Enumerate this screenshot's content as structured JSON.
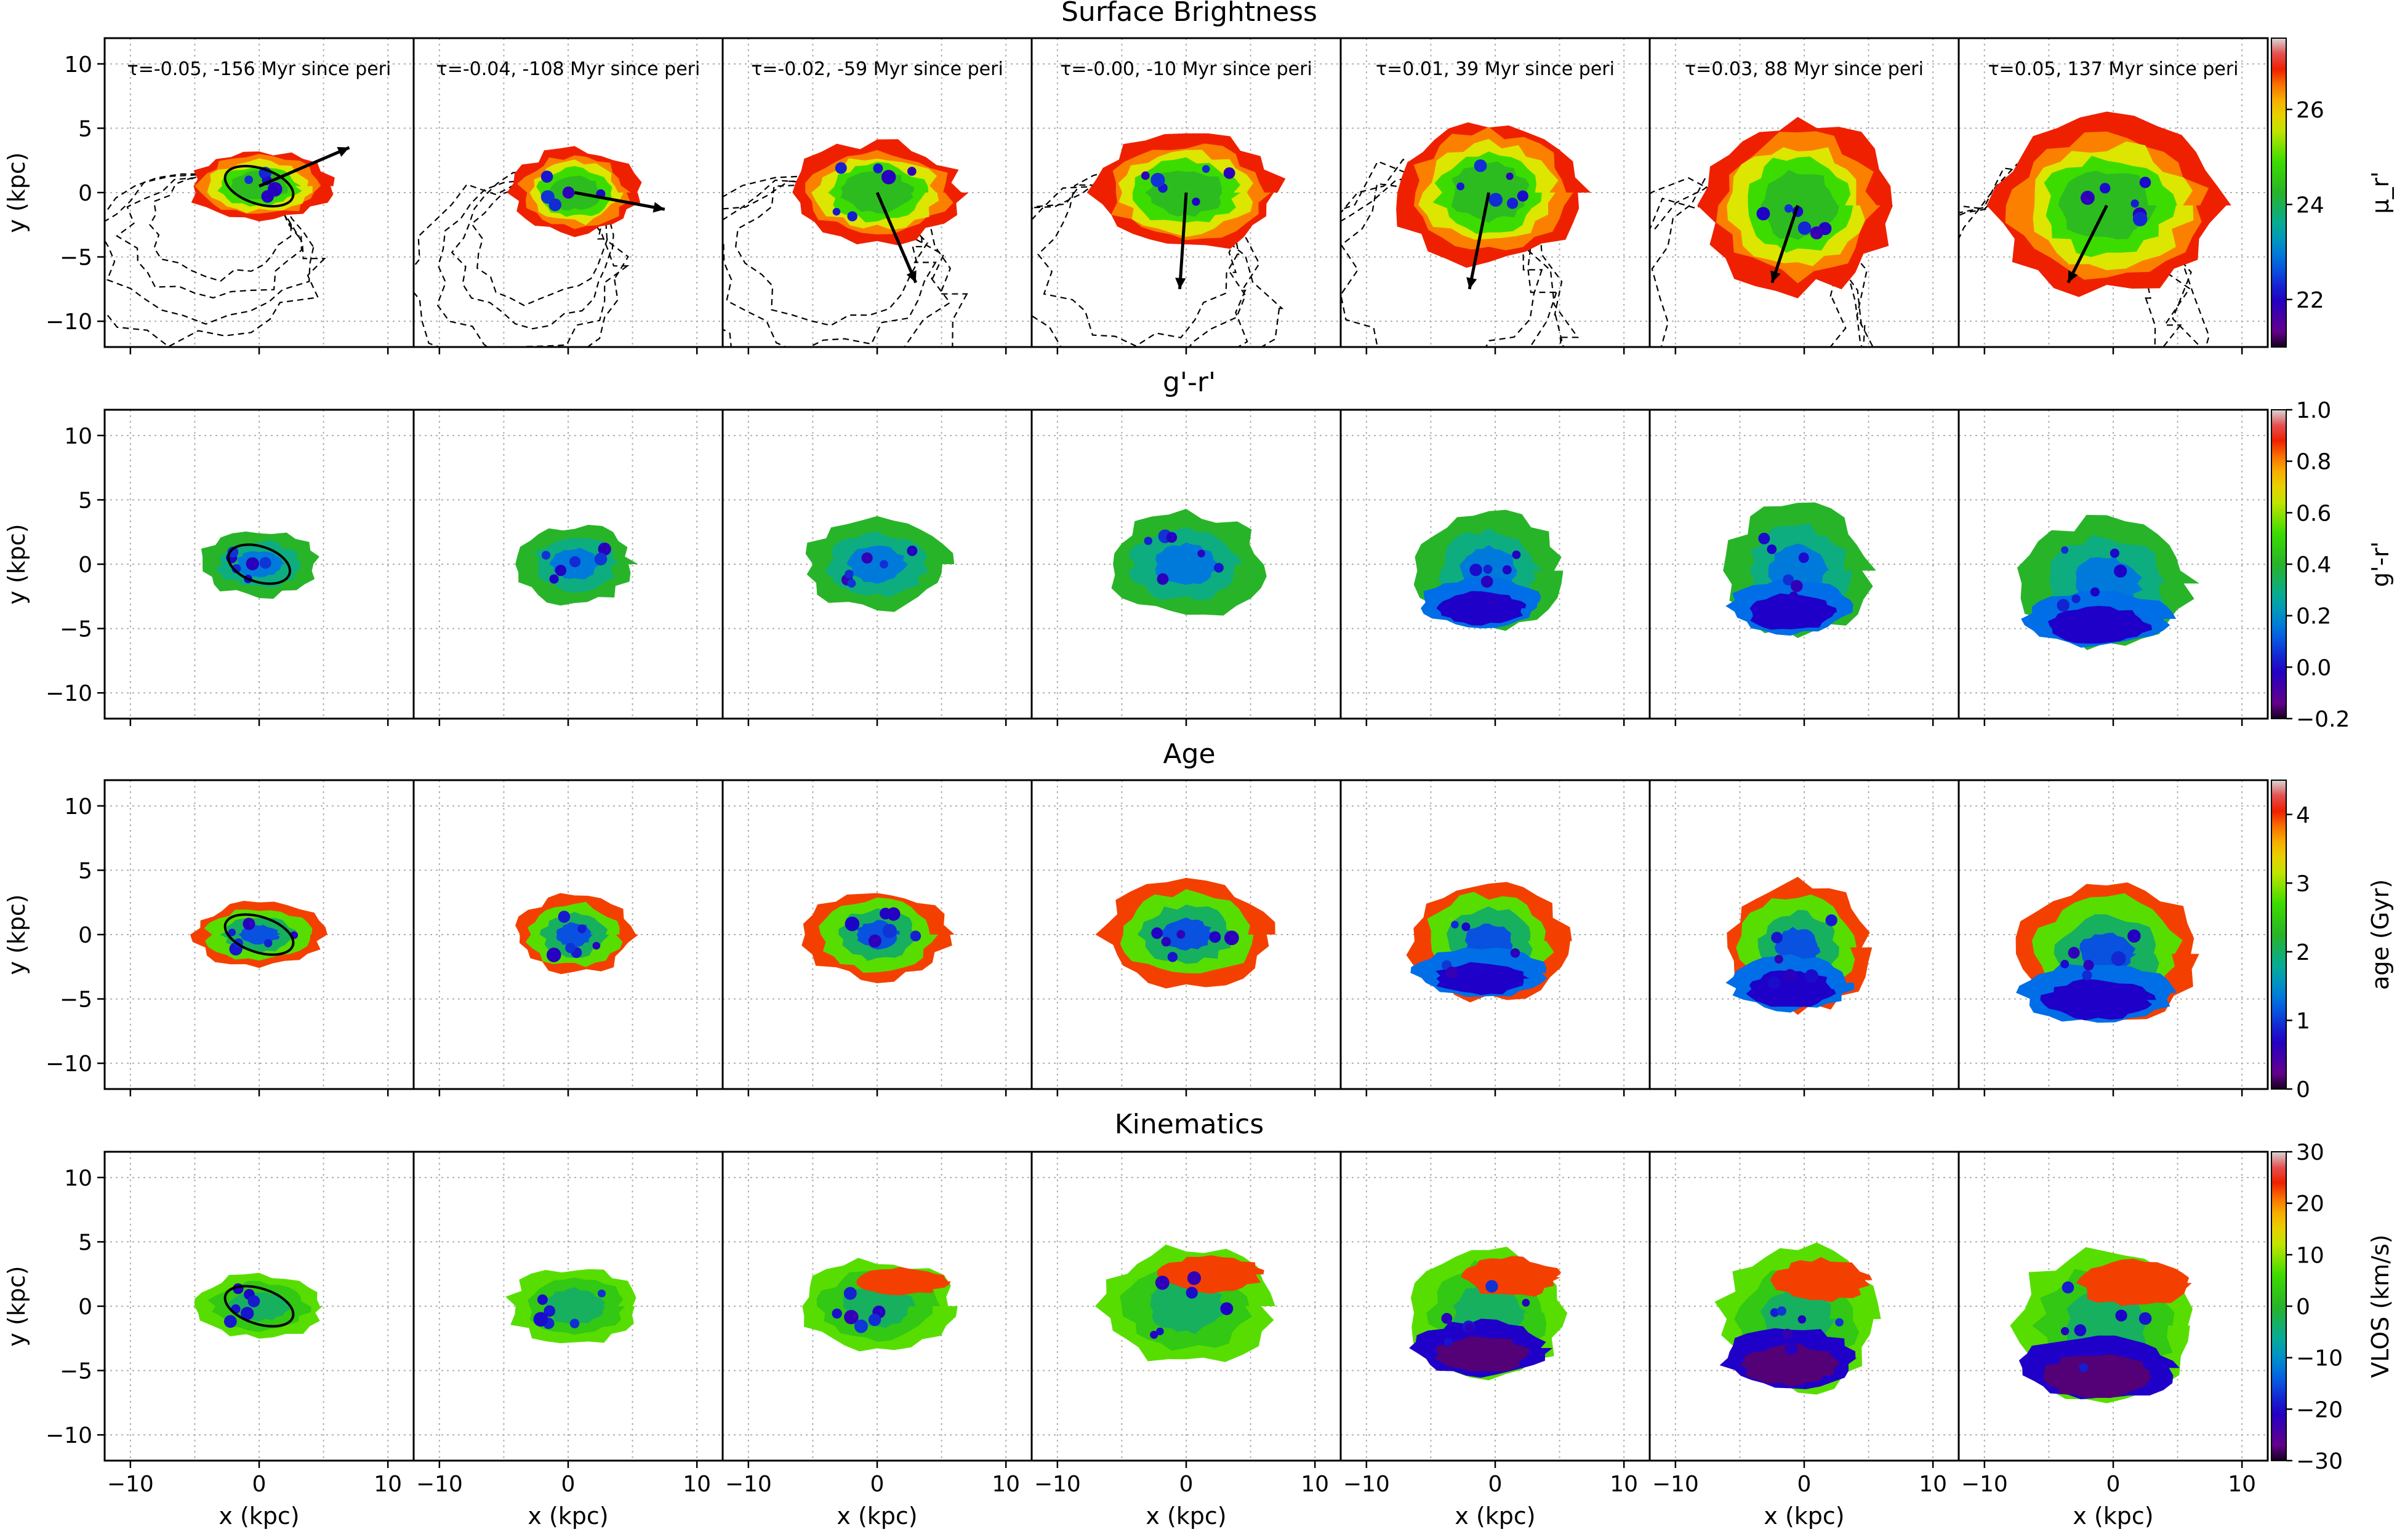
{
  "figure": {
    "rows": [
      {
        "title": "Surface Brightness",
        "cbar_label": "μ_r'",
        "cbar_ticks": [
          "22",
          "24",
          "26"
        ]
      },
      {
        "title": "g'-r'",
        "cbar_label": "g'-r'",
        "cbar_ticks": [
          "−0.2",
          "0.0",
          "0.2",
          "0.4",
          "0.6",
          "0.8",
          "1.0"
        ]
      },
      {
        "title": "Age",
        "cbar_label": "age (Gyr)",
        "cbar_ticks": [
          "0",
          "1",
          "2",
          "3",
          "4"
        ]
      },
      {
        "title": "Kinematics",
        "cbar_label": "VLOS (km/s)",
        "cbar_ticks": [
          "−30",
          "−20",
          "−10",
          "0",
          "10",
          "20",
          "30"
        ]
      }
    ],
    "panel_titles": [
      "τ=-0.05, -156 Myr since peri",
      "τ=-0.04, -108 Myr since peri",
      "τ=-0.02, -59 Myr since peri",
      "τ=-0.00, -10 Myr since peri",
      "τ=0.01, 39 Myr since peri",
      "τ=0.03, 88 Myr since peri",
      "τ=0.05, 137 Myr since peri"
    ],
    "xlabel": "x (kpc)",
    "ylabel": "y (kpc)",
    "x_ticks": [
      "−10",
      "0",
      "10"
    ],
    "y_ticks": [
      "10",
      "5",
      "0",
      "−5",
      "−10"
    ]
  },
  "chart_data": [
    {
      "type": "heatmap",
      "title": "Surface Brightness",
      "xlabel": "x (kpc)",
      "ylabel": "y (kpc)",
      "xlim": [
        -12,
        12
      ],
      "ylim": [
        -12,
        12
      ],
      "x_ticks": [
        -10,
        0,
        10
      ],
      "y_ticks": [
        -10,
        -5,
        0,
        5,
        10
      ],
      "grid": true,
      "colorbar": {
        "label": "μ_r'",
        "range": [
          21,
          27.5
        ],
        "ticks": [
          22,
          24,
          26
        ],
        "colormap": "spectral (purple→red)"
      },
      "panels": [
        {
          "title": "τ=-0.05, -156 Myr since peri",
          "tau": -0.05,
          "myr_since_peri": -156,
          "center": [
            0,
            0.5
          ],
          "half_width": 5,
          "half_height": 2.5,
          "arrow_to": [
            7,
            3.5
          ]
        },
        {
          "title": "τ=-0.04, -108 Myr since peri",
          "tau": -0.04,
          "myr_since_peri": -108,
          "center": [
            0.5,
            0
          ],
          "half_width": 4.5,
          "half_height": 3,
          "arrow_to": [
            7.5,
            -1.3
          ]
        },
        {
          "title": "τ=-0.02, -59 Myr since peri",
          "tau": -0.02,
          "myr_since_peri": -59,
          "center": [
            0,
            0
          ],
          "half_width": 6,
          "half_height": 3.5,
          "arrow_to": [
            3,
            -7
          ]
        },
        {
          "title": "τ=-0.00, -10 Myr since peri",
          "tau": -0.0,
          "myr_since_peri": -10,
          "center": [
            0,
            0
          ],
          "half_width": 6.5,
          "half_height": 4,
          "arrow_to": [
            -0.5,
            -7.5
          ]
        },
        {
          "title": "τ=0.01, 39 Myr since peri",
          "tau": 0.01,
          "myr_since_peri": 39,
          "center": [
            -0.5,
            0
          ],
          "half_width": 6.5,
          "half_height": 5,
          "arrow_to": [
            -2,
            -7.5
          ]
        },
        {
          "title": "τ=0.03, 88 Myr since peri",
          "tau": 0.03,
          "myr_since_peri": 88,
          "center": [
            -0.5,
            -1
          ],
          "half_width": 6.5,
          "half_height": 6,
          "arrow_to": [
            -2.5,
            -7
          ]
        },
        {
          "title": "τ=0.05, 137 Myr since peri",
          "tau": 0.05,
          "myr_since_peri": 137,
          "center": [
            -0.5,
            -1
          ],
          "half_width": 8,
          "half_height": 6,
          "arrow_to": [
            -3.5,
            -7
          ]
        }
      ]
    },
    {
      "type": "heatmap",
      "title": "g'-r'",
      "xlabel": "x (kpc)",
      "ylabel": "y (kpc)",
      "xlim": [
        -12,
        12
      ],
      "ylim": [
        -12,
        12
      ],
      "grid": true,
      "colorbar": {
        "label": "g'-r'",
        "range": [
          -0.2,
          1.0
        ],
        "ticks": [
          -0.2,
          0.0,
          0.2,
          0.4,
          0.6,
          0.8,
          1.0
        ],
        "colormap": "spectral (purple→red)"
      },
      "panels": [
        {
          "title": "τ=-0.05, -156 Myr since peri",
          "center": [
            0,
            0
          ],
          "half_width": 4.5,
          "half_height": 2.5,
          "ellipse": true
        },
        {
          "title": "τ=-0.04, -108 Myr since peri",
          "center": [
            0.5,
            0
          ],
          "half_width": 4.5,
          "half_height": 3
        },
        {
          "title": "τ=-0.02, -59 Myr since peri",
          "center": [
            0,
            0
          ],
          "half_width": 5.5,
          "half_height": 3.5
        },
        {
          "title": "τ=-0.00, -10 Myr since peri",
          "center": [
            0,
            0
          ],
          "half_width": 6,
          "half_height": 4
        },
        {
          "title": "τ=0.01, 39 Myr since peri",
          "center": [
            -0.5,
            -0.5
          ],
          "half_width": 5.5,
          "half_height": 4.5
        },
        {
          "title": "τ=0.03, 88 Myr since peri",
          "center": [
            -0.5,
            -0.5
          ],
          "half_width": 5.5,
          "half_height": 5
        },
        {
          "title": "τ=0.05, 137 Myr since peri",
          "center": [
            -0.5,
            -1.5
          ],
          "half_width": 6.5,
          "half_height": 5
        }
      ]
    },
    {
      "type": "heatmap",
      "title": "Age",
      "xlabel": "x (kpc)",
      "ylabel": "y (kpc)",
      "xlim": [
        -12,
        12
      ],
      "ylim": [
        -12,
        12
      ],
      "grid": true,
      "colorbar": {
        "label": "age (Gyr)",
        "range": [
          0,
          4.5
        ],
        "ticks": [
          0,
          1,
          2,
          3,
          4
        ],
        "colormap": "spectral (purple→red)"
      },
      "panels": [
        {
          "title": "τ=-0.05, -156 Myr since peri",
          "center": [
            0,
            0
          ],
          "half_width": 5,
          "half_height": 2.5,
          "ellipse": true
        },
        {
          "title": "τ=-0.04, -108 Myr since peri",
          "center": [
            0.5,
            0
          ],
          "half_width": 4.5,
          "half_height": 3
        },
        {
          "title": "τ=-0.02, -59 Myr since peri",
          "center": [
            0,
            0
          ],
          "half_width": 5.5,
          "half_height": 3.5
        },
        {
          "title": "τ=-0.00, -10 Myr since peri",
          "center": [
            0,
            0
          ],
          "half_width": 6.5,
          "half_height": 4
        },
        {
          "title": "τ=0.01, 39 Myr since peri",
          "center": [
            -0.5,
            -0.5
          ],
          "half_width": 6,
          "half_height": 4.5
        },
        {
          "title": "τ=0.03, 88 Myr since peri",
          "center": [
            -0.5,
            -1
          ],
          "half_width": 5.5,
          "half_height": 5
        },
        {
          "title": "τ=0.05, 137 Myr since peri",
          "center": [
            -0.5,
            -1.5
          ],
          "half_width": 7,
          "half_height": 5.5
        }
      ]
    },
    {
      "type": "heatmap",
      "title": "Kinematics",
      "xlabel": "x (kpc)",
      "ylabel": "y (kpc)",
      "xlim": [
        -12,
        12
      ],
      "ylim": [
        -12,
        12
      ],
      "grid": true,
      "colorbar": {
        "label": "VLOS (km/s)",
        "range": [
          -30,
          30
        ],
        "ticks": [
          -30,
          -20,
          -10,
          0,
          10,
          20,
          30
        ],
        "colormap": "spectral (purple→red)"
      },
      "panels": [
        {
          "title": "τ=-0.05, -156 Myr since peri",
          "center": [
            0,
            0
          ],
          "half_width": 5,
          "half_height": 2.5,
          "ellipse": true
        },
        {
          "title": "τ=-0.04, -108 Myr since peri",
          "center": [
            0.5,
            0
          ],
          "half_width": 5,
          "half_height": 3
        },
        {
          "title": "τ=-0.02, -59 Myr since peri",
          "center": [
            0,
            0
          ],
          "half_width": 6,
          "half_height": 3.5
        },
        {
          "title": "τ=-0.00, -10 Myr since peri",
          "center": [
            0,
            0
          ],
          "half_width": 6.5,
          "half_height": 4.5
        },
        {
          "title": "τ=0.01, 39 Myr since peri",
          "center": [
            -0.5,
            -0.5
          ],
          "half_width": 6,
          "half_height": 5
        },
        {
          "title": "τ=0.03, 88 Myr since peri",
          "center": [
            -0.5,
            -1
          ],
          "half_width": 6,
          "half_height": 5.5
        },
        {
          "title": "τ=0.05, 137 Myr since peri",
          "center": [
            -0.5,
            -1.5
          ],
          "half_width": 7,
          "half_height": 6
        }
      ]
    }
  ]
}
